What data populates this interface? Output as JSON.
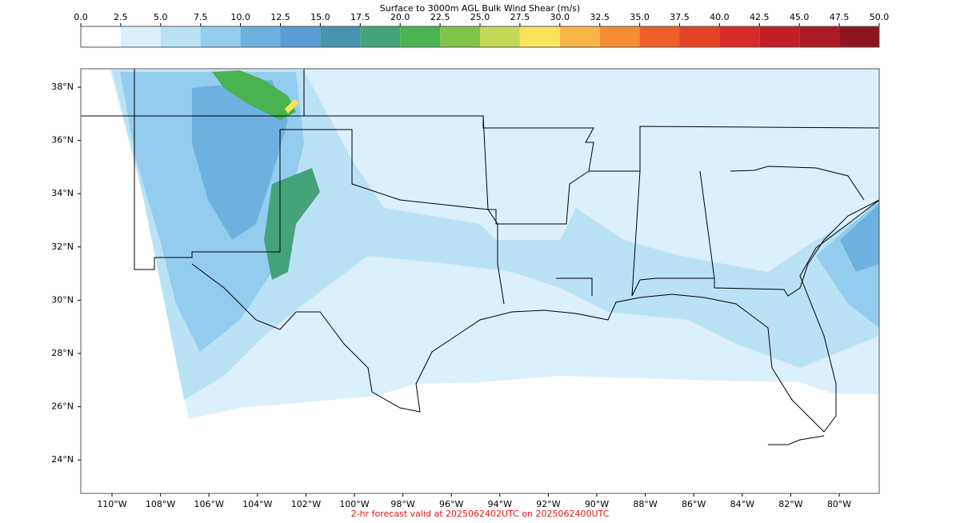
{
  "colorbar": {
    "title": "Surface to 3000m AGL Bulk Wind Shear (m/s)",
    "lim": [
      0,
      50
    ],
    "ticks": [
      {
        "value": 0,
        "label": "0.0"
      },
      {
        "value": 2.5,
        "label": "2.5"
      },
      {
        "value": 5,
        "label": "5.0"
      },
      {
        "value": 7.5,
        "label": "7.5"
      },
      {
        "value": 10,
        "label": "10.0"
      },
      {
        "value": 12.5,
        "label": "12.5"
      },
      {
        "value": 15,
        "label": "15.0"
      },
      {
        "value": 17.5,
        "label": "17.5"
      },
      {
        "value": 20,
        "label": "20.0"
      },
      {
        "value": 22.5,
        "label": "22.5"
      },
      {
        "value": 25,
        "label": "25.0"
      },
      {
        "value": 27.5,
        "label": "27.5"
      },
      {
        "value": 30,
        "label": "30.0"
      },
      {
        "value": 32.5,
        "label": "32.5"
      },
      {
        "value": 35,
        "label": "35.0"
      },
      {
        "value": 37.5,
        "label": "37.5"
      },
      {
        "value": 40,
        "label": "40.0"
      },
      {
        "value": 42.5,
        "label": "42.5"
      },
      {
        "value": 45,
        "label": "45.0"
      },
      {
        "value": 47.5,
        "label": "47.5"
      },
      {
        "value": 50,
        "label": "50.0"
      }
    ],
    "colors": [
      "#ffffff",
      "#dcf0fb",
      "#b9e2f5",
      "#92cdef",
      "#6db1e0",
      "#5b9bd5",
      "#4793b0",
      "#45a37b",
      "#48b34f",
      "#80c44a",
      "#c3d958",
      "#f9e45a",
      "#f8b649",
      "#f58d34",
      "#ef5e2a",
      "#e54428",
      "#d82a29",
      "#c21f27",
      "#aa1b23",
      "#8e151d"
    ]
  },
  "map": {
    "lat_ticks": [
      {
        "value": 38,
        "label": "38°N"
      },
      {
        "value": 36,
        "label": "36°N"
      },
      {
        "value": 34,
        "label": "34°N"
      },
      {
        "value": 32,
        "label": "32°N"
      },
      {
        "value": 30,
        "label": "30°N"
      },
      {
        "value": 28,
        "label": "28°N"
      },
      {
        "value": 26,
        "label": "26°N"
      },
      {
        "value": 24,
        "label": "24°N"
      }
    ],
    "lon_ticks": [
      {
        "value": -110,
        "label": "110°W"
      },
      {
        "value": -108,
        "label": "108°W"
      },
      {
        "value": -106,
        "label": "106°W"
      },
      {
        "value": -104,
        "label": "104°W"
      },
      {
        "value": -102,
        "label": "102°W"
      },
      {
        "value": -100,
        "label": "100°W"
      },
      {
        "value": -98,
        "label": "98°W"
      },
      {
        "value": -96,
        "label": "96°W"
      },
      {
        "value": -94,
        "label": "94°W"
      },
      {
        "value": -92,
        "label": "92°W"
      },
      {
        "value": -90,
        "label": "90°W"
      },
      {
        "value": -88,
        "label": "88°W"
      },
      {
        "value": -86,
        "label": "86°W"
      },
      {
        "value": -84,
        "label": "84°W"
      },
      {
        "value": -82,
        "label": "82°W"
      },
      {
        "value": -80,
        "label": "80°W"
      }
    ]
  },
  "footer": "2-hr forecast valid at 2025062402UTC on 2025062400UTC"
}
